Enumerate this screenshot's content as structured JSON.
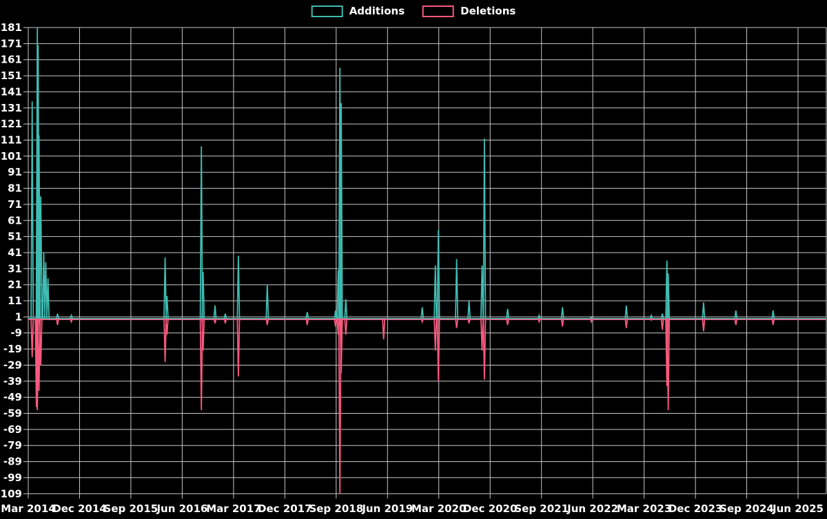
{
  "legend": {
    "items": [
      {
        "id": "additions",
        "label": "Additions",
        "color": "#3fbdb3"
      },
      {
        "id": "deletions",
        "label": "Deletions",
        "color": "#f9597f"
      }
    ]
  },
  "chart_data": {
    "type": "line",
    "style": "vertical-spike-impulses-on-zero-baseline",
    "title": "",
    "background": "#000000",
    "grid": true,
    "grid_color": "#c9c9c9",
    "text_color": "#ffffff",
    "legend_position": "top-center",
    "x_axis": {
      "type": "time",
      "start": "2014-03",
      "end": "2025-06",
      "tick_labels": [
        "Mar 2014",
        "Dec 2014",
        "Sep 2015",
        "Jun 2016",
        "Mar 2017",
        "Dec 2017",
        "Sep 2018",
        "Jun 2019",
        "Mar 2020",
        "Dec 2020",
        "Sep 2021",
        "Jun 2022",
        "Mar 2023",
        "Dec 2023",
        "Sep 2024",
        "Jun 2025"
      ]
    },
    "y_axis": {
      "min": -109,
      "max": 181,
      "tick_step": 10,
      "top_tick_label": "181",
      "bottom_tick_label": "-109",
      "baseline_tick": 1
    },
    "series": [
      {
        "name": "Additions",
        "color": "#3fbdb3",
        "points": [
          [
            "2014-03-22",
            135
          ],
          [
            "2014-04-19",
            181
          ],
          [
            "2014-04-23",
            170
          ],
          [
            "2014-04-28",
            114
          ],
          [
            "2014-05-07",
            76
          ],
          [
            "2014-05-23",
            41
          ],
          [
            "2014-06-03",
            35
          ],
          [
            "2014-06-15",
            25
          ],
          [
            "2014-08-05",
            3
          ],
          [
            "2014-10-18",
            2
          ],
          [
            "2016-03-01",
            38
          ],
          [
            "2016-03-11",
            14
          ],
          [
            "2016-09-12",
            107
          ],
          [
            "2016-09-21",
            29
          ],
          [
            "2016-11-24",
            8
          ],
          [
            "2017-01-18",
            3
          ],
          [
            "2017-03-27",
            39
          ],
          [
            "2017-08-29",
            21
          ],
          [
            "2018-03-29",
            4
          ],
          [
            "2018-08-28",
            5
          ],
          [
            "2018-09-12",
            30
          ],
          [
            "2018-09-21",
            156
          ],
          [
            "2018-09-28",
            134
          ],
          [
            "2018-10-22",
            12
          ],
          [
            "2019-12-04",
            7
          ],
          [
            "2020-02-13",
            33
          ],
          [
            "2020-02-29",
            55
          ],
          [
            "2020-06-05",
            37
          ],
          [
            "2020-08-10",
            11
          ],
          [
            "2020-10-19",
            33
          ],
          [
            "2020-11-01",
            112
          ],
          [
            "2021-03-03",
            6
          ],
          [
            "2021-08-19",
            2
          ],
          [
            "2021-12-22",
            7
          ],
          [
            "2022-05-24",
            1
          ],
          [
            "2022-11-28",
            8
          ],
          [
            "2023-04-09",
            2
          ],
          [
            "2023-06-07",
            3
          ],
          [
            "2023-07-01",
            36
          ],
          [
            "2023-07-08",
            28
          ],
          [
            "2024-01-14",
            10
          ],
          [
            "2024-07-04",
            5
          ],
          [
            "2025-01-20",
            5
          ]
        ]
      },
      {
        "name": "Deletions",
        "color": "#f9597f",
        "points": [
          [
            "2014-03-22",
            -24
          ],
          [
            "2014-04-14",
            -55
          ],
          [
            "2014-04-19",
            -57
          ],
          [
            "2014-04-28",
            -45
          ],
          [
            "2014-05-07",
            -29
          ],
          [
            "2014-08-05",
            -4
          ],
          [
            "2014-10-18",
            -2
          ],
          [
            "2016-03-01",
            -27
          ],
          [
            "2016-03-11",
            -10
          ],
          [
            "2016-09-12",
            -57
          ],
          [
            "2016-09-21",
            -20
          ],
          [
            "2016-11-24",
            -3
          ],
          [
            "2017-01-18",
            -3
          ],
          [
            "2017-03-27",
            -36
          ],
          [
            "2017-08-29",
            -4
          ],
          [
            "2018-03-29",
            -4
          ],
          [
            "2018-08-28",
            -5
          ],
          [
            "2018-09-12",
            -10
          ],
          [
            "2018-09-21",
            -109
          ],
          [
            "2018-09-28",
            -34
          ],
          [
            "2018-10-22",
            -10
          ],
          [
            "2019-05-11",
            -13
          ],
          [
            "2019-12-04",
            -2
          ],
          [
            "2020-02-13",
            -20
          ],
          [
            "2020-02-29",
            -39
          ],
          [
            "2020-06-05",
            -6
          ],
          [
            "2020-08-10",
            -3
          ],
          [
            "2020-10-19",
            -20
          ],
          [
            "2020-11-01",
            -38
          ],
          [
            "2021-03-03",
            -4
          ],
          [
            "2021-08-19",
            -2
          ],
          [
            "2021-12-22",
            -5
          ],
          [
            "2022-05-24",
            -2
          ],
          [
            "2022-11-28",
            -6
          ],
          [
            "2023-04-09",
            -1
          ],
          [
            "2023-06-07",
            -7
          ],
          [
            "2023-07-01",
            -42
          ],
          [
            "2023-07-08",
            -57
          ],
          [
            "2024-01-14",
            -8
          ],
          [
            "2024-07-04",
            -4
          ],
          [
            "2025-01-20",
            -4
          ]
        ]
      }
    ]
  }
}
